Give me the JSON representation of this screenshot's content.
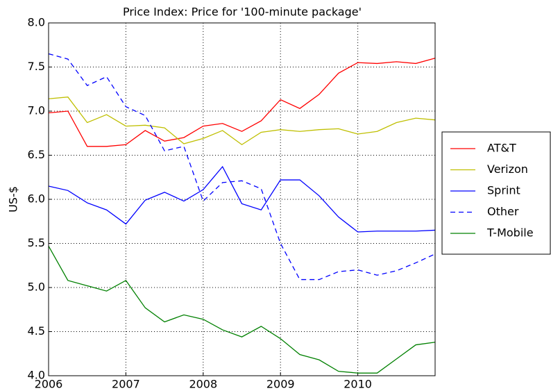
{
  "chart_data": {
    "type": "line",
    "title": "Price Index: Price for '100-minute package'",
    "y_label": "US-$",
    "x": [
      2006,
      2006.25,
      2006.5,
      2006.75,
      2007,
      2007.25,
      2007.5,
      2007.75,
      2008,
      2008.25,
      2008.5,
      2008.75,
      2009,
      2009.25,
      2009.5,
      2009.75,
      2010,
      2010.25,
      2010.5,
      2010.75,
      2011
    ],
    "xlim": [
      2006,
      2011
    ],
    "xticks": [
      2006,
      2007,
      2008,
      2009,
      2010
    ],
    "ylim": [
      4,
      8
    ],
    "yticks": [
      {
        "value": 4,
        "label": "4.0"
      },
      {
        "value": 4.5,
        "label": "4.5"
      },
      {
        "value": 5,
        "label": "5.0"
      },
      {
        "value": 5.5,
        "label": "5.5"
      },
      {
        "value": 6,
        "label": "6.0"
      },
      {
        "value": 6.5,
        "label": "6.5"
      },
      {
        "value": 7,
        "label": "7.0"
      },
      {
        "value": 7.5,
        "label": "7.5"
      },
      {
        "value": 8,
        "label": "8.0"
      }
    ],
    "grid": true,
    "legend": "outside-right",
    "series": [
      {
        "name": "AT&T",
        "color": "#ff0000",
        "dashed": false,
        "values": [
          6.98,
          7.0,
          6.6,
          6.6,
          6.62,
          6.78,
          6.66,
          6.7,
          6.83,
          6.86,
          6.77,
          6.89,
          7.13,
          7.03,
          7.19,
          7.43,
          7.55,
          7.54,
          7.56,
          7.54,
          7.6
        ]
      },
      {
        "name": "Verizon",
        "color": "#bfbf00",
        "dashed": false,
        "values": [
          7.14,
          7.16,
          6.87,
          6.96,
          6.83,
          6.84,
          6.81,
          6.63,
          6.69,
          6.78,
          6.62,
          6.76,
          6.79,
          6.77,
          6.79,
          6.8,
          6.74,
          6.77,
          6.87,
          6.92,
          6.9
        ]
      },
      {
        "name": "Sprint",
        "color": "#0000ff",
        "dashed": false,
        "values": [
          6.15,
          6.1,
          5.96,
          5.88,
          5.72,
          5.99,
          6.08,
          5.98,
          6.11,
          6.37,
          5.95,
          5.88,
          6.22,
          6.22,
          6.04,
          5.8,
          5.63,
          5.64,
          5.64,
          5.64,
          5.65
        ]
      },
      {
        "name": "Other",
        "color": "#0000ff",
        "dashed": true,
        "values": [
          7.65,
          7.59,
          7.29,
          7.39,
          7.05,
          6.95,
          6.55,
          6.6,
          5.98,
          6.19,
          6.21,
          6.12,
          5.5,
          5.09,
          5.09,
          5.18,
          5.2,
          5.14,
          5.19,
          5.28,
          5.38
        ]
      },
      {
        "name": "T-Mobile",
        "color": "#008000",
        "dashed": false,
        "values": [
          5.47,
          5.08,
          5.02,
          4.96,
          5.08,
          4.77,
          4.61,
          4.69,
          4.64,
          4.52,
          4.44,
          4.56,
          4.42,
          4.24,
          4.18,
          4.05,
          4.03,
          4.03,
          4.19,
          4.35,
          4.38
        ]
      }
    ]
  }
}
